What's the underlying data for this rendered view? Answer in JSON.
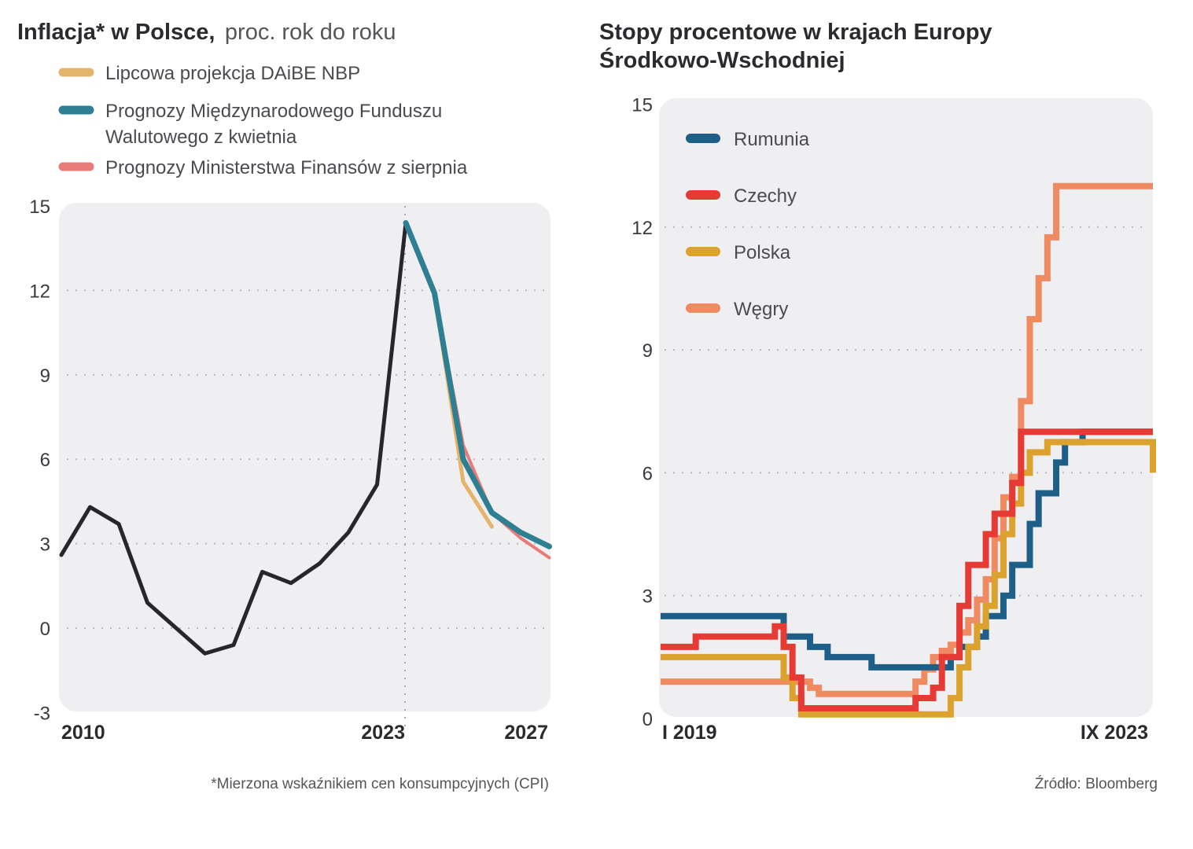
{
  "chart_data": [
    {
      "type": "line",
      "title": "Inflacja* w Polsce,",
      "subtitle": "proc. rok do roku",
      "xlim": [
        2010,
        2027
      ],
      "ylim": [
        -3,
        15
      ],
      "yticks": [
        -3,
        0,
        3,
        6,
        9,
        12,
        15
      ],
      "xtick_labels": [
        "2010",
        "2023",
        "2027"
      ],
      "grid": "horizontal dotted",
      "legend_placement": "top-left",
      "footnote": "*Mierzona wskaźnikiem cen konsumpcyjnych (CPI)",
      "series": [
        {
          "color": "#26262b",
          "x": [
            2010,
            2011,
            2012,
            2013,
            2014,
            2015,
            2016,
            2017,
            2018,
            2019,
            2020,
            2021,
            2022
          ],
          "y": [
            2.6,
            4.3,
            3.7,
            0.9,
            0.0,
            -0.9,
            -0.6,
            2.0,
            1.6,
            2.3,
            3.4,
            5.1,
            14.4
          ]
        },
        {
          "name": "Lipcowa projekcja DAiBE NBP",
          "color": "#e3b46a",
          "x": [
            2022,
            2023,
            2024,
            2025
          ],
          "y": [
            14.4,
            11.9,
            5.2,
            3.6
          ]
        },
        {
          "name": "Prognozy Ministerstwa Finansów z sierpnia",
          "color": "#e87a78",
          "x": [
            2022,
            2023,
            2024,
            2025,
            2026,
            2027
          ],
          "y": [
            14.4,
            11.9,
            6.5,
            4.1,
            3.2,
            2.5
          ]
        },
        {
          "name": "Prognozy Międzynarodowego Funduszu Walutowego z kwietnia",
          "legend_lines": [
            "Prognozy Międzynarodowego Funduszu",
            "Walutowego z kwietnia"
          ],
          "color": "#2f7f93",
          "x": [
            2022,
            2023,
            2024,
            2025,
            2026,
            2027
          ],
          "y": [
            14.4,
            11.9,
            6.0,
            4.1,
            3.4,
            2.9
          ]
        }
      ],
      "legend_order": [
        1,
        3,
        2
      ]
    },
    {
      "type": "line",
      "title_lines": [
        "Stopy procentowe w krajach Europy",
        "Środkowo-Wschodniej"
      ],
      "xlim": [
        "2019-01",
        "2023-09"
      ],
      "ylim": [
        0,
        15
      ],
      "yticks": [
        0,
        3,
        6,
        9,
        12,
        15
      ],
      "xtick_labels": [
        "I 2019",
        "IX 2023"
      ],
      "grid": "horizontal dotted",
      "legend_placement": "top-left",
      "step": true,
      "source": "Źródło: Bloomberg",
      "series": [
        {
          "name": "Węgry",
          "color": "#f08a60",
          "steps": [
            [
              "2019-01",
              0.9
            ],
            [
              "2020-06",
              0.75
            ],
            [
              "2020-07",
              0.6
            ],
            [
              "2021-06",
              0.9
            ],
            [
              "2021-07",
              1.2
            ],
            [
              "2021-08",
              1.5
            ],
            [
              "2021-09",
              1.65
            ],
            [
              "2021-10",
              1.8
            ],
            [
              "2021-11",
              2.1
            ],
            [
              "2021-12",
              2.4
            ],
            [
              "2022-01",
              2.9
            ],
            [
              "2022-02",
              3.4
            ],
            [
              "2022-03",
              4.4
            ],
            [
              "2022-04",
              5.4
            ],
            [
              "2022-05",
              5.9
            ],
            [
              "2022-06",
              7.75
            ],
            [
              "2022-07",
              9.75
            ],
            [
              "2022-08",
              10.75
            ],
            [
              "2022-09",
              11.75
            ],
            [
              "2022-10",
              13.0
            ]
          ]
        },
        {
          "name": "Rumunia",
          "color": "#1d5f86",
          "steps": [
            [
              "2019-01",
              2.5
            ],
            [
              "2020-03",
              2.0
            ],
            [
              "2020-06",
              1.75
            ],
            [
              "2020-08",
              1.5
            ],
            [
              "2021-01",
              1.25
            ],
            [
              "2021-10",
              1.5
            ],
            [
              "2021-11",
              1.75
            ],
            [
              "2022-01",
              2.0
            ],
            [
              "2022-02",
              2.5
            ],
            [
              "2022-04",
              3.0
            ],
            [
              "2022-05",
              3.75
            ],
            [
              "2022-07",
              4.75
            ],
            [
              "2022-08",
              5.5
            ],
            [
              "2022-10",
              6.25
            ],
            [
              "2022-11",
              6.75
            ],
            [
              "2023-01",
              7.0
            ]
          ]
        },
        {
          "name": "Polska",
          "color": "#dba22e",
          "steps": [
            [
              "2019-01",
              1.5
            ],
            [
              "2020-03",
              1.0
            ],
            [
              "2020-04",
              0.5
            ],
            [
              "2020-05",
              0.1
            ],
            [
              "2021-10",
              0.5
            ],
            [
              "2021-11",
              1.25
            ],
            [
              "2021-12",
              1.75
            ],
            [
              "2022-01",
              2.25
            ],
            [
              "2022-02",
              2.75
            ],
            [
              "2022-03",
              3.5
            ],
            [
              "2022-04",
              4.5
            ],
            [
              "2022-05",
              5.25
            ],
            [
              "2022-06",
              6.0
            ],
            [
              "2022-07",
              6.5
            ],
            [
              "2022-09",
              6.75
            ],
            [
              "2023-09",
              6.0
            ]
          ]
        },
        {
          "name": "Czechy",
          "color": "#e63a35",
          "steps": [
            [
              "2019-01",
              1.75
            ],
            [
              "2019-05",
              2.0
            ],
            [
              "2020-02",
              2.25
            ],
            [
              "2020-03",
              1.75
            ],
            [
              "2020-04",
              1.0
            ],
            [
              "2020-05",
              0.25
            ],
            [
              "2021-06",
              0.5
            ],
            [
              "2021-08",
              0.75
            ],
            [
              "2021-09",
              1.5
            ],
            [
              "2021-11",
              2.75
            ],
            [
              "2021-12",
              3.75
            ],
            [
              "2022-02",
              4.5
            ],
            [
              "2022-03",
              5.0
            ],
            [
              "2022-05",
              5.75
            ],
            [
              "2022-06",
              7.0
            ]
          ]
        }
      ],
      "legend_order": [
        1,
        3,
        2,
        0
      ]
    }
  ]
}
